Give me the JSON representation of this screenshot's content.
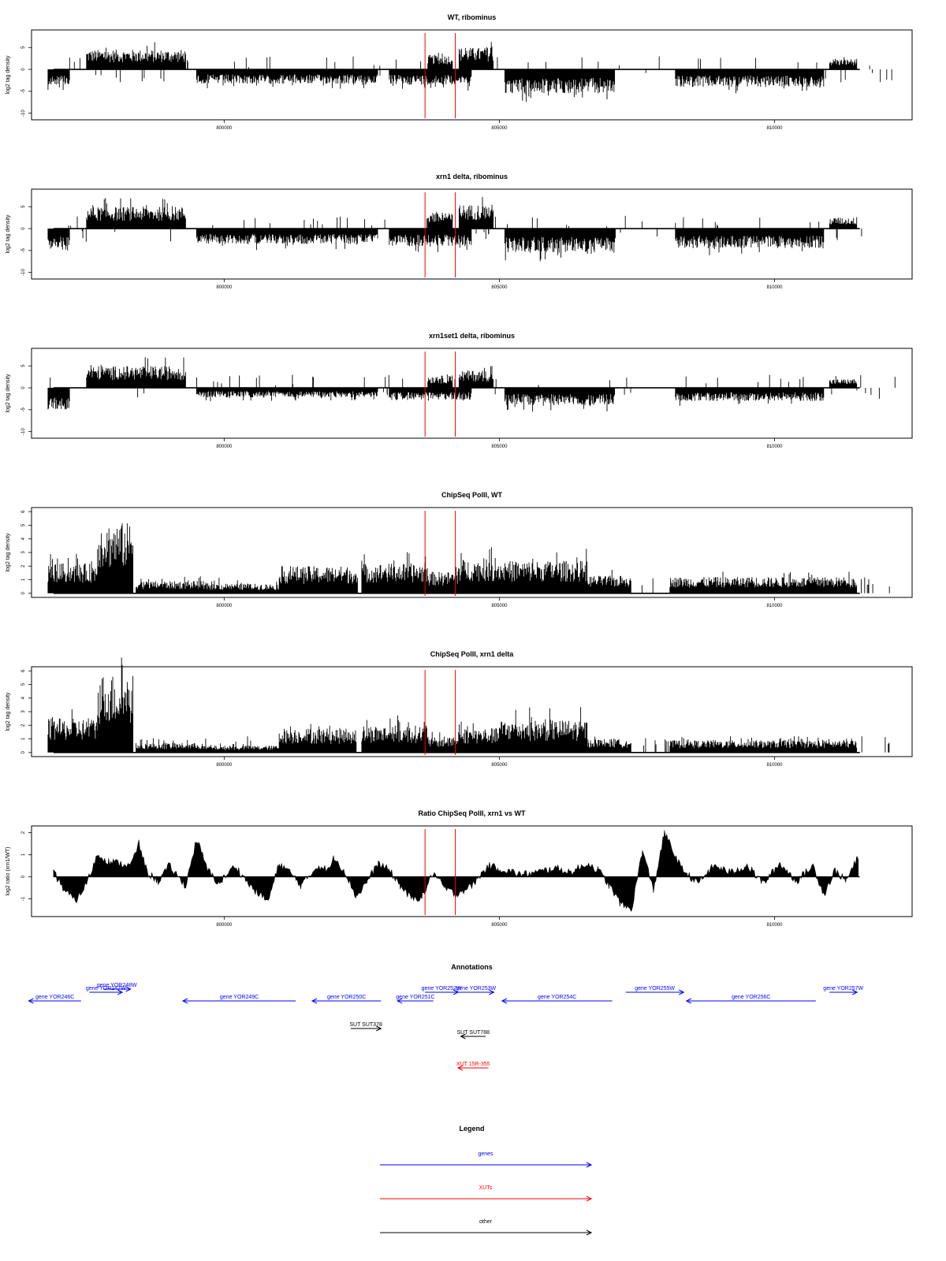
{
  "chart_data": [
    {
      "type": "bar",
      "title": "WT, ribominus",
      "xlabel": "",
      "ylabel": "log2 tag density",
      "xlim": [
        796500,
        812500
      ],
      "ylim": [
        -11.5,
        9
      ],
      "xticks": [
        800000,
        805000,
        810000
      ],
      "yticks": [
        -10,
        -5,
        0,
        5
      ],
      "vlines": [
        803650,
        804200
      ],
      "plus_blocks": [
        [
          797500,
          799300,
          4.5
        ],
        [
          803700,
          804150,
          3.3
        ],
        [
          804270,
          804900,
          5
        ],
        [
          811000,
          811500,
          2.4
        ]
      ],
      "minus_blocks": [
        [
          796800,
          797200,
          3.5
        ],
        [
          799500,
          802800,
          3.3
        ],
        [
          803000,
          804500,
          3.5
        ],
        [
          805100,
          807100,
          5.5
        ],
        [
          808200,
          810900,
          4
        ]
      ]
    },
    {
      "type": "bar",
      "title": "xrn1 delta, ribominus",
      "xlabel": "",
      "ylabel": "log2 tag density",
      "xlim": [
        796500,
        812500
      ],
      "ylim": [
        -11.5,
        9
      ],
      "xticks": [
        800000,
        805000,
        810000
      ],
      "yticks": [
        -10,
        -5,
        0,
        5
      ],
      "vlines": [
        803650,
        804200
      ],
      "plus_blocks": [
        [
          797500,
          799300,
          5
        ],
        [
          803700,
          804150,
          3.5
        ],
        [
          804270,
          804900,
          5.5
        ],
        [
          811000,
          811500,
          2.5
        ]
      ],
      "minus_blocks": [
        [
          796800,
          797200,
          5
        ],
        [
          799500,
          802800,
          3.5
        ],
        [
          803000,
          804500,
          4
        ],
        [
          805100,
          807100,
          5.5
        ],
        [
          808200,
          810900,
          4.5
        ]
      ]
    },
    {
      "type": "bar",
      "title": "xrn1set1 delta, ribominus",
      "xlabel": "",
      "ylabel": "log2 tag density",
      "xlim": [
        796500,
        812500
      ],
      "ylim": [
        -11.5,
        9
      ],
      "xticks": [
        800000,
        805000,
        810000
      ],
      "yticks": [
        -10,
        -5,
        0,
        5
      ],
      "vlines": [
        803650,
        804200
      ],
      "plus_blocks": [
        [
          797500,
          799300,
          5
        ],
        [
          803700,
          804150,
          2.8
        ],
        [
          804270,
          804900,
          4
        ],
        [
          811000,
          811500,
          2
        ]
      ],
      "minus_blocks": [
        [
          796800,
          797200,
          5
        ],
        [
          799500,
          802800,
          2.2
        ],
        [
          803000,
          804500,
          2.8
        ],
        [
          805100,
          807100,
          4
        ],
        [
          808200,
          810900,
          3
        ]
      ]
    },
    {
      "type": "bar",
      "title": "ChipSeq PolII, WT",
      "xlabel": "",
      "ylabel": "log2 tag density",
      "xlim": [
        796500,
        812500
      ],
      "ylim": [
        -0.3,
        6.3
      ],
      "xticks": [
        800000,
        805000,
        810000
      ],
      "yticks": [
        0,
        1,
        2,
        3,
        4,
        5,
        6
      ],
      "vlines": [
        803650,
        804200
      ],
      "plus_blocks": [
        [
          796800,
          797700,
          2.2
        ],
        [
          797700,
          798350,
          5.2
        ],
        [
          798400,
          799600,
          0.9
        ],
        [
          799600,
          801000,
          0.7
        ],
        [
          801000,
          802400,
          2
        ],
        [
          802500,
          803700,
          2.2
        ],
        [
          803700,
          804250,
          1.6
        ],
        [
          804250,
          805000,
          2.5
        ],
        [
          805000,
          806600,
          2.4
        ],
        [
          806600,
          807400,
          1.3
        ],
        [
          808100,
          811500,
          1.2
        ]
      ],
      "minus_blocks": []
    },
    {
      "type": "bar",
      "title": "ChipSeq PolII, xrn1 delta",
      "xlabel": "",
      "ylabel": "log2 tag density",
      "xlim": [
        796500,
        812500
      ],
      "ylim": [
        -0.3,
        6.3
      ],
      "xticks": [
        800000,
        805000,
        810000
      ],
      "yticks": [
        0,
        1,
        2,
        3,
        4,
        5,
        6
      ],
      "vlines": [
        803650,
        804200
      ],
      "plus_blocks": [
        [
          796800,
          797700,
          2.5
        ],
        [
          797700,
          798350,
          5.8
        ],
        [
          798400,
          799600,
          0.7
        ],
        [
          799600,
          801000,
          0.5
        ],
        [
          801000,
          802400,
          1.8
        ],
        [
          802500,
          803700,
          2
        ],
        [
          803700,
          804250,
          1.1
        ],
        [
          804250,
          805000,
          1.8
        ],
        [
          805000,
          806600,
          2.4
        ],
        [
          806600,
          807400,
          1
        ],
        [
          808100,
          811500,
          0.9
        ]
      ],
      "minus_blocks": []
    },
    {
      "type": "area",
      "title": "Ratio ChipSeq PolII, xrn1 vs WT",
      "xlabel": "",
      "ylabel": "log2 ratio (xrn1/WT)",
      "xlim": [
        796500,
        812500
      ],
      "ylim": [
        -1.8,
        2.3
      ],
      "xticks": [
        800000,
        805000,
        810000
      ],
      "yticks": [
        -1,
        0,
        1,
        2
      ],
      "vlines": [
        803650,
        804200
      ],
      "x": [
        796900,
        797100,
        797300,
        797500,
        797700,
        797900,
        798100,
        798300,
        798450,
        798600,
        798800,
        799000,
        799300,
        799500,
        799700,
        799900,
        800200,
        800500,
        800800,
        801000,
        801200,
        801400,
        801700,
        801900,
        802000,
        802200,
        802400,
        802600,
        802800,
        803000,
        803200,
        803400,
        803600,
        803800,
        804000,
        804200,
        804500,
        804800,
        805100,
        805400,
        805700,
        806000,
        806300,
        806600,
        806800,
        807000,
        807200,
        807400,
        807600,
        807800,
        808000,
        808300,
        808600,
        808900,
        809200,
        809500,
        809800,
        810100,
        810400,
        810700,
        810900,
        811100,
        811300,
        811500
      ],
      "values": [
        0.2,
        -0.6,
        -1.1,
        -0.3,
        1.0,
        0.7,
        0.6,
        0.5,
        1.5,
        0.2,
        -0.2,
        0.5,
        -0.4,
        1.7,
        0.3,
        -0.3,
        0.5,
        -0.5,
        -1.1,
        0.6,
        0.2,
        -0.4,
        0.5,
        0.3,
        0.9,
        0.2,
        -0.9,
        -0.2,
        0.6,
        0.3,
        -0.4,
        -1.0,
        -0.9,
        0.2,
        -0.5,
        -0.8,
        -0.4,
        0.5,
        0.3,
        0.1,
        0.2,
        0.4,
        0.2,
        0.6,
        0.3,
        -0.4,
        -1.2,
        -1.5,
        1.2,
        -0.6,
        2.0,
        0.4,
        -0.3,
        0.5,
        0.2,
        0.5,
        -0.3,
        0.6,
        -0.2,
        0.5,
        -0.8,
        0.3,
        -0.2,
        0.8
      ]
    }
  ],
  "annotations": {
    "title": "Annotations",
    "genes": [
      {
        "label": "gene YOR246C",
        "strand": "-",
        "x": [
          796450,
          797400
        ]
      },
      {
        "label": "gene YOR247W",
        "strand": "+",
        "x": [
          797550,
          798150
        ]
      },
      {
        "label": "gene YOR248W",
        "strand": "+",
        "x": [
          797800,
          798300
        ]
      },
      {
        "label": "gene YOR249C",
        "strand": "-",
        "x": [
          799250,
          801300
        ]
      },
      {
        "label": "gene YOR250C",
        "strand": "-",
        "x": [
          801600,
          802850
        ]
      },
      {
        "label": "gene YOR251C",
        "strand": "-",
        "x": [
          803150,
          803800
        ]
      },
      {
        "label": "gene YOR252W",
        "strand": "+",
        "x": [
          803650,
          804250
        ]
      },
      {
        "label": "gene YOR253W",
        "strand": "+",
        "x": [
          804250,
          804900
        ]
      },
      {
        "label": "gene YOR254C",
        "strand": "-",
        "x": [
          805050,
          807050
        ]
      },
      {
        "label": "gene YOR255W",
        "strand": "+",
        "x": [
          807300,
          808350
        ]
      },
      {
        "label": "gene YOR256C",
        "strand": "-",
        "x": [
          808400,
          810750
        ]
      },
      {
        "label": "gene YOR257W",
        "strand": "+",
        "x": [
          811000,
          811500
        ]
      }
    ],
    "others": [
      {
        "label": "SUT SUT378",
        "strand": "+",
        "x": [
          802300,
          802850
        ]
      },
      {
        "label": "SUT SUT788",
        "strand": "-",
        "x": [
          804300,
          804750
        ]
      }
    ],
    "xuts": [
      {
        "label": "XUT 15R-355",
        "strand": "-",
        "x": [
          804250,
          804800
        ]
      }
    ]
  },
  "legend": {
    "title": "Legend",
    "items": [
      {
        "label": "genes",
        "color": "#0000ff"
      },
      {
        "label": "XUTs",
        "color": "#ff0000"
      },
      {
        "label": "other",
        "color": "#000000"
      }
    ]
  },
  "colors": {
    "gene": "#0000ff",
    "xut": "#ff0000",
    "other": "#000000",
    "vline": "#ff0000",
    "data": "#000000"
  }
}
